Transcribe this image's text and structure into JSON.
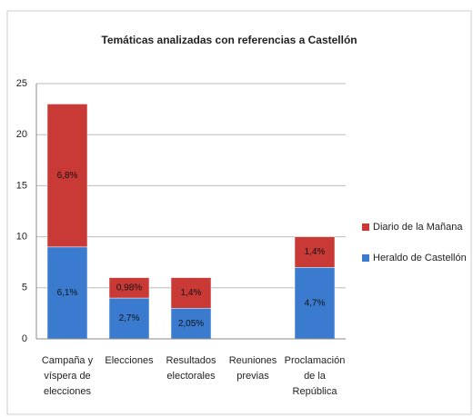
{
  "chart_data": {
    "type": "stacked_bar",
    "title": "Temáticas analizadas con referencias a Castellón",
    "categories": [
      "Campaña y víspera de elecciones",
      "Elecciones",
      "Resultados electorales",
      "Reuniones previas",
      "Proclamación de la República"
    ],
    "series": [
      {
        "name": "Heraldo de Castellón",
        "color": "#3a7bd0",
        "values": [
          9,
          4,
          3,
          0,
          7
        ],
        "labels": [
          "6,1%",
          "2,7%",
          "2,05%",
          null,
          "4,7%"
        ]
      },
      {
        "name": "Diario de la Mañana",
        "color": "#c93a36",
        "values": [
          14,
          2,
          3,
          0,
          3
        ],
        "labels": [
          "6,8%",
          "0,98%",
          "1,4%",
          null,
          "1,4%"
        ]
      }
    ],
    "ylim": [
      0,
      25
    ],
    "yticks": [
      0,
      5,
      10,
      15,
      20,
      25
    ],
    "grid": true,
    "legend": "right"
  }
}
